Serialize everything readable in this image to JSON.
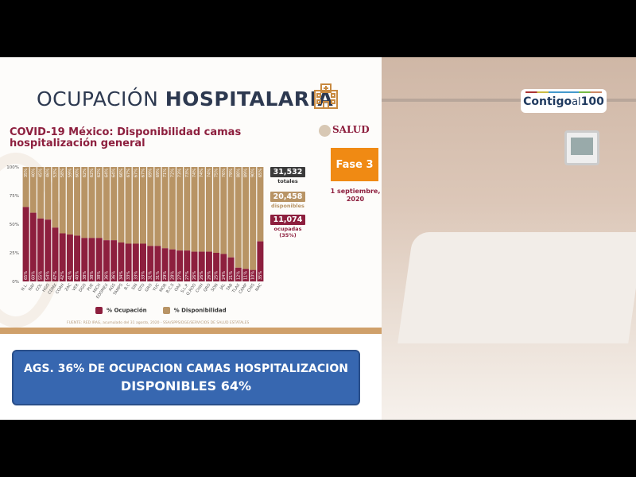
{
  "slide": {
    "title_light": "OCUPACIÓN",
    "title_bold": "HOSPITALARIA",
    "subtitle": "COVID-19 México: Disponibilidad camas hospitalización general",
    "brand": "SALUD",
    "phase": "Fase 3",
    "date": "1 septiembre, 2020",
    "stats": [
      {
        "value": "31,532",
        "label": "totales",
        "color": "#3a3a3a"
      },
      {
        "value": "20,458",
        "label": "disponibles",
        "color": "#b89465"
      },
      {
        "value": "11,074",
        "label": "ocupadas (35%)",
        "color": "#8d1f3e"
      }
    ],
    "footnote": "FUENTE: RED IRAG, acumulado del 31 agosto, 2020 - SSA/SPPS/DGE/SERVICIOS DE SALUD ESTATALES"
  },
  "chart_data": {
    "type": "bar",
    "stacked": true,
    "title": "COVID-19 México: Disponibilidad camas hospitalización general",
    "categories": [
      "N.L.",
      "NAY",
      "COL",
      "HGO",
      "CDMX",
      "COAH",
      "ZAC",
      "VER",
      "DGO",
      "PUE",
      "MICH",
      "EDOMEX",
      "AGS",
      "TAMPS",
      "B.C",
      "SIN",
      "GTO",
      "GRO",
      "YUC",
      "MOR",
      "B.C.S",
      "OAX",
      "S.L.P.",
      "Q.ROO",
      "CHIH",
      "QRO",
      "SON",
      "JAL",
      "TAB",
      "TLAX",
      "CAMP",
      "CHIS",
      "NAC"
    ],
    "series": [
      {
        "name": "% Ocupación",
        "color": "#8d1f3e",
        "values": [
          65,
          60,
          55,
          54,
          47,
          42,
          41,
          40,
          38,
          38,
          38,
          36,
          36,
          34,
          33,
          33,
          33,
          31,
          31,
          29,
          28,
          27,
          27,
          26,
          26,
          26,
          25,
          24,
          21,
          12,
          11,
          10,
          35
        ]
      },
      {
        "name": "% Disponibilidad",
        "color": "#b89465",
        "values": [
          35,
          40,
          45,
          46,
          53,
          58,
          59,
          60,
          62,
          62,
          62,
          64,
          64,
          66,
          67,
          67,
          67,
          69,
          69,
          71,
          72,
          73,
          73,
          74,
          74,
          74,
          75,
          76,
          79,
          88,
          89,
          90,
          65
        ]
      }
    ],
    "yticks": [
      "0%",
      "25%",
      "50%",
      "75%",
      "100%"
    ],
    "ylim": [
      0,
      100
    ],
    "legend": "bottom",
    "grid": false
  },
  "banner": {
    "line1": "AGS. 36% DE OCUPACION CAMAS HOSPITALIZACION",
    "line2": "DISPONIBLES 64%"
  },
  "overlay": {
    "logo_text": "Contigo al 100",
    "logo_a": "Contigo",
    "logo_b": "al",
    "logo_c": "100"
  }
}
